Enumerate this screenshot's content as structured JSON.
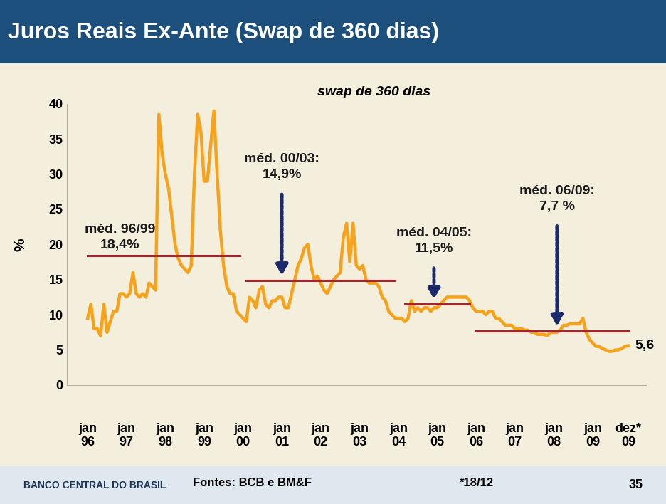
{
  "chart_data": {
    "type": "line",
    "title": "Juros Reais Ex-Ante (Swap de 360 dias)",
    "subtitle": "swap de 360 dias",
    "y_label": "%",
    "categories": [
      "jan\n96",
      null,
      null,
      null,
      null,
      null,
      null,
      null,
      null,
      null,
      null,
      null,
      "jan\n97",
      null,
      null,
      null,
      null,
      null,
      null,
      null,
      null,
      null,
      null,
      null,
      "jan\n98",
      null,
      null,
      null,
      null,
      null,
      null,
      null,
      null,
      null,
      null,
      null,
      "jan\n99",
      null,
      null,
      null,
      null,
      null,
      null,
      null,
      null,
      null,
      null,
      null,
      "jan\n00",
      null,
      null,
      null,
      null,
      null,
      null,
      null,
      null,
      null,
      null,
      null,
      "jan\n01",
      null,
      null,
      null,
      null,
      null,
      null,
      null,
      null,
      null,
      null,
      null,
      "jan\n02",
      null,
      null,
      null,
      null,
      null,
      null,
      null,
      null,
      null,
      null,
      null,
      "jan\n03",
      null,
      null,
      null,
      null,
      null,
      null,
      null,
      null,
      null,
      null,
      null,
      "jan\n04",
      null,
      null,
      null,
      null,
      null,
      null,
      null,
      null,
      null,
      null,
      null,
      "jan\n05",
      null,
      null,
      null,
      null,
      null,
      null,
      null,
      null,
      null,
      null,
      null,
      "jan\n06",
      null,
      null,
      null,
      null,
      null,
      null,
      null,
      null,
      null,
      null,
      null,
      "jan\n07",
      null,
      null,
      null,
      null,
      null,
      null,
      null,
      null,
      null,
      null,
      null,
      "jan\n08",
      null,
      null,
      null,
      null,
      null,
      null,
      null,
      null,
      null,
      null,
      null,
      "jan\n09",
      null,
      null,
      null,
      null,
      null,
      null,
      null,
      null,
      null,
      null,
      "dez*\n09"
    ],
    "values": [
      9.5,
      11.5,
      8,
      8,
      7,
      11.5,
      7.5,
      9,
      10.5,
      10.5,
      13,
      13,
      12.5,
      13,
      16,
      13,
      12.5,
      13,
      12.5,
      14.5,
      14,
      13.5,
      38.5,
      33,
      30,
      28,
      24,
      20,
      18,
      17,
      16.5,
      16,
      17,
      30,
      38.5,
      36,
      29,
      29,
      34,
      39,
      30,
      22,
      17,
      14,
      13,
      13,
      10.5,
      10,
      9.5,
      9,
      12.5,
      12,
      11,
      13.5,
      14,
      11.5,
      11,
      12,
      12,
      12.5,
      12.5,
      11,
      11,
      13,
      15,
      17,
      18,
      19.5,
      20,
      17,
      15,
      15.5,
      14.5,
      13.5,
      13,
      14,
      15,
      15.5,
      16,
      21,
      23,
      17.5,
      23,
      17,
      16.5,
      17,
      15,
      14.5,
      14.5,
      14.5,
      14,
      12.5,
      12,
      10.5,
      10,
      9.5,
      9.5,
      9.5,
      9,
      9.5,
      12,
      10.5,
      11,
      10.5,
      11,
      11,
      10.5,
      11,
      11,
      11.5,
      12,
      12.5,
      12.5,
      12.5,
      12.5,
      12.5,
      12.5,
      12.5,
      12,
      11,
      10.5,
      10.5,
      10.5,
      10,
      10.5,
      10.5,
      9.5,
      9.5,
      9,
      8.5,
      8.5,
      8.5,
      8,
      8,
      8,
      7.8,
      7.8,
      7.5,
      7.5,
      7.2,
      7.2,
      7.2,
      7,
      7.5,
      7.5,
      7.5,
      7.8,
      8.5,
      8.5,
      8.7,
      8.7,
      8.7,
      8.7,
      9.5,
      7.5,
      6.5,
      6,
      5.5,
      5.5,
      5.2,
      5,
      4.8,
      4.8,
      5,
      5,
      5.2,
      5.5,
      5.6
    ],
    "color": "#f7a21b",
    "ylim": [
      0,
      40
    ],
    "yticks": [
      0,
      5,
      10,
      15,
      20,
      25,
      30,
      35,
      40
    ],
    "grid": false,
    "last_label": "5,6",
    "averages": [
      {
        "label": "méd. 96/99\n18,4%",
        "value": 18.4,
        "start": 0,
        "end": 47,
        "color": "#a0282d"
      },
      {
        "label": "méd. 00/03:\n14,9%",
        "value": 14.9,
        "start": 49,
        "end": 95,
        "color": "#a0282d"
      },
      {
        "label": "méd. 04/05:\n11,5%",
        "value": 11.5,
        "start": 98,
        "end": 118,
        "color": "#a0282d"
      },
      {
        "label": "méd. 06/09:\n7,7 %",
        "value": 7.7,
        "start": 120,
        "end": 167,
        "color": "#a0282d"
      }
    ],
    "footer": {
      "logo": "BANCO CENTRAL DO BRASIL",
      "source": "Fontes: BCB e BM&F",
      "note": "*18/12",
      "page": "35"
    }
  }
}
